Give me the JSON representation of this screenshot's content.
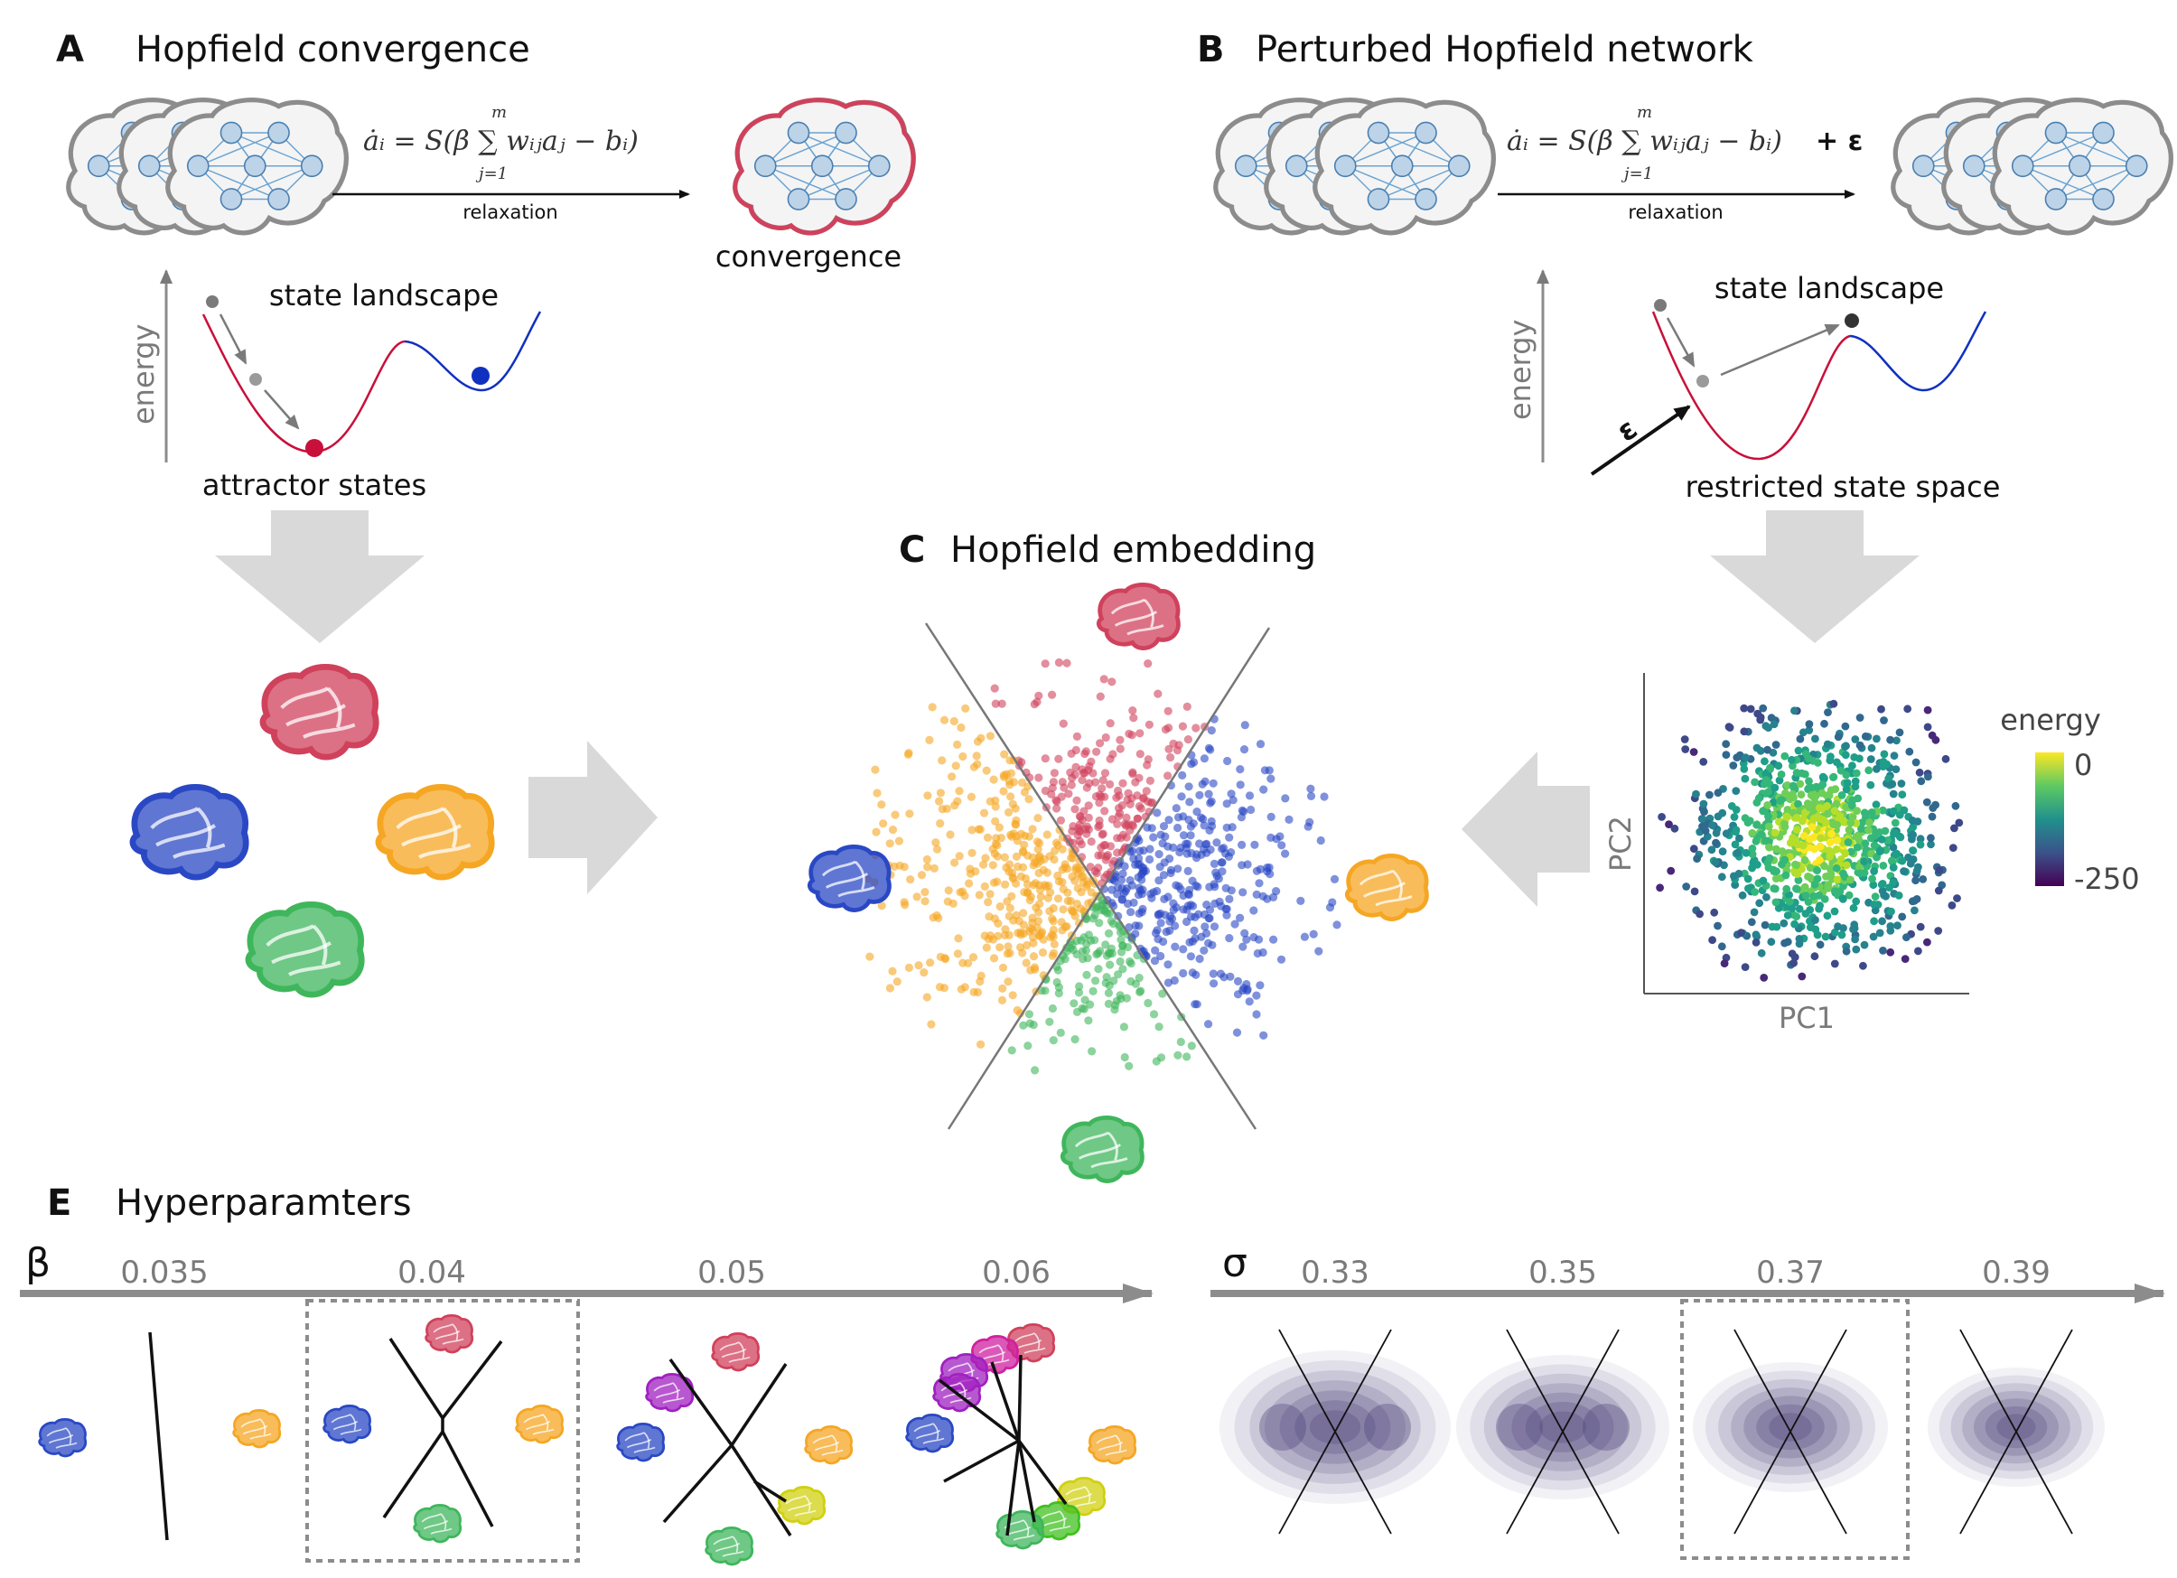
{
  "panels": {
    "a": {
      "letter": "A",
      "title": "Hopfield convergence",
      "equation": "ȧᵢ = S(β ∑ wᵢⱼaⱼ − bᵢ)",
      "sum_upper": "m",
      "sum_lower": "j=1",
      "arrow_label": "relaxation",
      "result_label": "convergence",
      "landscape_label": "state landscape",
      "axis_label": "energy",
      "bottom_label": "attractor states"
    },
    "b": {
      "letter": "B",
      "title": "Perturbed Hopfield network",
      "equation": "ȧᵢ = S(β ∑ wᵢⱼaⱼ − bᵢ)",
      "noise_term": "+ ε",
      "sum_upper": "m",
      "sum_lower": "j=1",
      "arrow_label": "relaxation",
      "landscape_label": "state landscape",
      "axis_label": "energy",
      "noise_label": "ε",
      "bottom_label": "restricted state space",
      "pca_xlabel": "PC1",
      "pca_ylabel": "PC2",
      "colorbar_title": "energy",
      "colorbar_max": "0",
      "colorbar_min": "-250"
    },
    "c": {
      "letter": "C",
      "title": "Hopfield embedding"
    },
    "e": {
      "letter": "E",
      "title": "Hyperparamters",
      "beta_symbol": "β",
      "beta_values": [
        "0.035",
        "0.04",
        "0.05",
        "0.06"
      ],
      "sigma_symbol": "σ",
      "sigma_values": [
        "0.33",
        "0.35",
        "0.37",
        "0.39"
      ]
    }
  },
  "colors": {
    "red": "#d0415c",
    "blue": "#2a48c4",
    "orange": "#f5a623",
    "green": "#3fb65c",
    "purple": "#a020c0",
    "magenta": "#d020a0",
    "yellow": "#d0d010",
    "lime": "#40c020",
    "neuron": "#bcd3e8",
    "link": "#6aa3d2",
    "arrow_gray": "#d9d9d9",
    "axis_gray": "#8c8c8c",
    "landscape_red": "#c8103a",
    "landscape_blue": "#1030c0",
    "density": "#4a3f78"
  },
  "icons": [
    "brain-network-icon",
    "brain-attractor-icon",
    "big-gray-arrow-icon"
  ]
}
